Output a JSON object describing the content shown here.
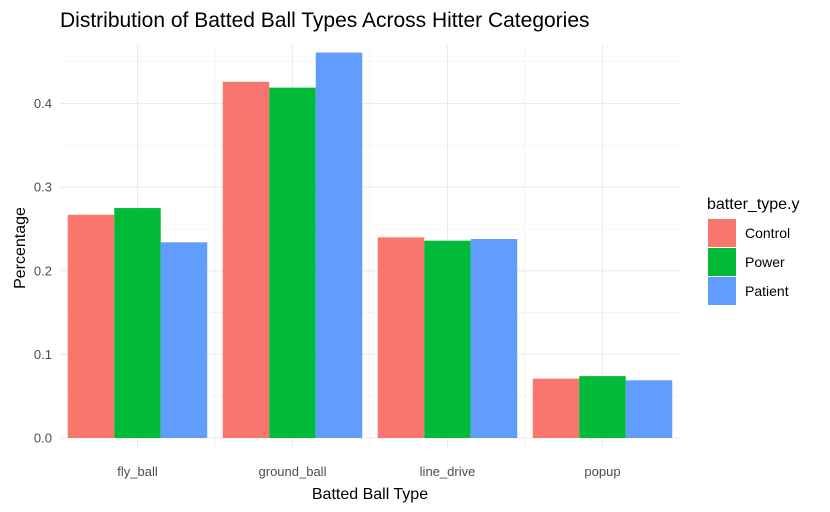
{
  "chart_data": {
    "type": "bar",
    "title": "Distribution of Batted Ball Types Across Hitter Categories",
    "xlabel": "Batted Ball Type",
    "ylabel": "Percentage",
    "categories": [
      "fly_ball",
      "ground_ball",
      "line_drive",
      "popup"
    ],
    "series": [
      {
        "name": "Control",
        "color": "#F8766D",
        "values": [
          0.267,
          0.426,
          0.24,
          0.071
        ]
      },
      {
        "name": "Power",
        "color": "#00BA38",
        "values": [
          0.275,
          0.419,
          0.236,
          0.074
        ]
      },
      {
        "name": "Patient",
        "color": "#619CFF",
        "values": [
          0.234,
          0.461,
          0.238,
          0.069
        ]
      }
    ],
    "ylim": [
      0,
      0.47
    ],
    "yticks": [
      0.0,
      0.1,
      0.2,
      0.3,
      0.4
    ],
    "ytick_labels": [
      "0.0",
      "0.1",
      "0.2",
      "0.3",
      "0.4"
    ],
    "grid": true,
    "legend": {
      "title": "batter_type.y",
      "position": "right"
    }
  }
}
